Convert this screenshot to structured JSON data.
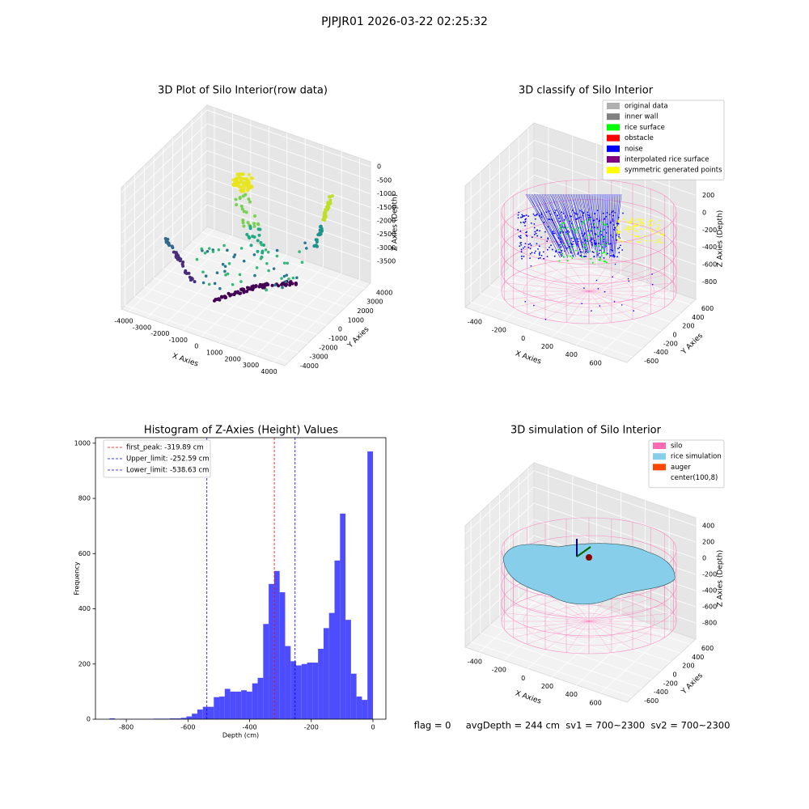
{
  "title": "PJPJR01 2026-03-22 02:25:32",
  "footer": "flag = 0     avgDepth = 244 cm  sv1 = 700~2300  sv2 = 700~2300",
  "chart_data": [
    {
      "type": "3d-scatter",
      "title": "3D Plot of Silo Interior(row data)",
      "xlabel": "X Axies",
      "ylabel": "Y Axies",
      "zlabel": "Z Axies (Depth)",
      "xlim": [
        -4400,
        4600
      ],
      "xticks": [
        -4000,
        -3000,
        -2000,
        -1000,
        0,
        1000,
        2000,
        3000,
        4000
      ],
      "ylim": [
        -4400,
        4600
      ],
      "yticks": [
        -4000,
        -3000,
        -2000,
        -1000,
        0,
        1000,
        2000,
        3000,
        4000
      ],
      "zlim": [
        -4300,
        180
      ],
      "zticks": [
        0,
        -500,
        -1000,
        -1500,
        -2000,
        -2500,
        -3000,
        -3500
      ]
    },
    {
      "type": "3d-scatter",
      "title": "3D classify of Silo Interior",
      "xlabel": "X Axies",
      "ylabel": "Y Axies",
      "zlabel": "Z Axies (Depth)",
      "xlim": [
        -520,
        820
      ],
      "xticks": [
        -400,
        -200,
        0,
        200,
        400,
        600
      ],
      "ylim": [
        -720,
        720
      ],
      "yticks": [
        -600,
        -400,
        -200,
        0,
        200,
        400,
        600
      ],
      "zlim": [
        -1000,
        400
      ],
      "zticks": [
        200,
        0,
        -200,
        -400,
        -600,
        -800
      ],
      "legend_loc": "upper right",
      "legend": [
        {
          "name": "original data",
          "color": "#b0b0b0"
        },
        {
          "name": "inner wall",
          "color": "#808080"
        },
        {
          "name": "rice surface",
          "color": "#00ff00"
        },
        {
          "name": "obstacle",
          "color": "#ff0000"
        },
        {
          "name": "noise",
          "color": "#0000ff"
        },
        {
          "name": "interpolated rice surface",
          "color": "#800080"
        },
        {
          "name": "symmetric generated points",
          "color": "#ffff00"
        }
      ]
    },
    {
      "type": "histogram",
      "title": "Histogram of Z-Axies (Height) Values",
      "xlabel": "Depth (cm)",
      "ylabel": "Frequency",
      "color": "#4d4dff",
      "bins": [
        -890,
        -872.2,
        -854.4,
        -836.6,
        -818.8,
        -801,
        -783.2,
        -765.4,
        -747.6,
        -729.8,
        -712,
        -694.2,
        -676.4,
        -658.6,
        -640.8,
        -623,
        -605.2,
        -587.4,
        -569.6,
        -551.8,
        -534,
        -516.2,
        -498.4,
        -480.6,
        -462.8,
        -445,
        -427.2,
        -409.4,
        -391.6,
        -373.8,
        -356,
        -338.2,
        -320.4,
        -302.6,
        -284.8,
        -267,
        -249.2,
        -231.4,
        -213.6,
        -195.8,
        -178,
        -160.2,
        -142.4,
        -124.6,
        -106.8,
        -89,
        -71.2,
        -53.4,
        -35.6,
        -17.8,
        0
      ],
      "values": [
        0,
        0,
        3,
        0,
        1,
        1,
        1,
        1,
        1,
        1,
        2,
        2,
        2,
        3,
        3,
        5,
        10,
        20,
        35,
        45,
        45,
        80,
        82,
        110,
        100,
        100,
        105,
        100,
        130,
        150,
        345,
        490,
        537,
        460,
        265,
        210,
        195,
        200,
        205,
        205,
        255,
        330,
        385,
        575,
        745,
        360,
        165,
        82,
        70,
        970
      ],
      "xlim": [
        -900,
        42
      ],
      "xticks": [
        -800,
        -600,
        -400,
        -200,
        0
      ],
      "ylim": [
        0,
        1020
      ],
      "yticks": [
        0,
        200,
        400,
        600,
        800,
        1000
      ],
      "legend_loc": "upper left",
      "lines": [
        {
          "name": "first_peak",
          "value": -319.89,
          "label": "first_peak: -319.89 cm",
          "color": "#ff0000"
        },
        {
          "name": "Upper_limit",
          "value": -252.59,
          "label": "Upper_limit: -252.59 cm",
          "color": "#0000ff"
        },
        {
          "name": "Lower_limit",
          "value": -538.63,
          "label": "Lower_limit: -538.63 cm",
          "color": "#0000ff"
        }
      ]
    },
    {
      "type": "3d-surface",
      "title": "3D simulation of Silo Interior",
      "xlabel": "X Axies",
      "ylabel": "Y Axies",
      "zlabel": "Z Axies (Depth)",
      "xlim": [
        -520,
        820
      ],
      "xticks": [
        -400,
        -200,
        0,
        200,
        400,
        600
      ],
      "ylim": [
        -720,
        720
      ],
      "yticks": [
        -600,
        -400,
        -200,
        0,
        200,
        400,
        600
      ],
      "zlim": [
        -1000,
        500
      ],
      "zticks": [
        400,
        200,
        0,
        -200,
        -400,
        -600,
        -800
      ],
      "legend_loc": "upper right",
      "legend": [
        {
          "name": "silo",
          "color": "#ff69b4"
        },
        {
          "name": "rice simulation",
          "color": "#87ceeb"
        },
        {
          "name": "auger",
          "color": "#ff4500"
        },
        {
          "name": "center(100,8)"
        }
      ]
    }
  ]
}
